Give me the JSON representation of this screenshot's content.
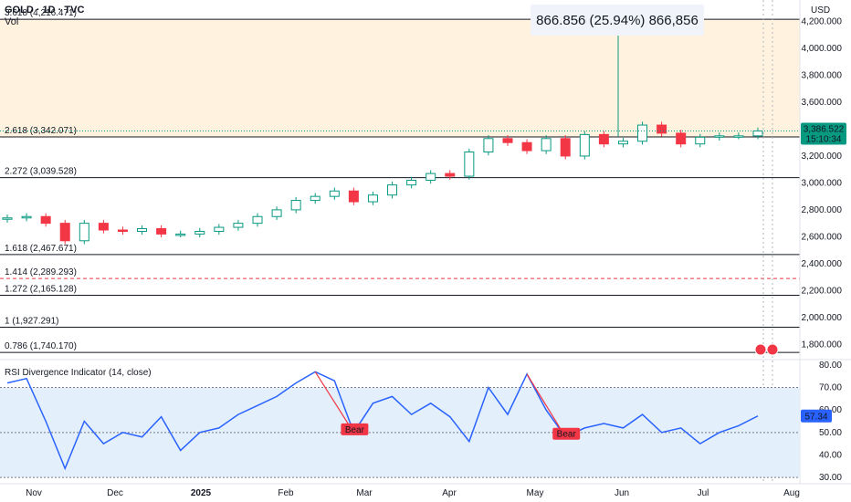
{
  "header": {
    "symbol_line": "GOLD · 1D · TVC",
    "vol_label": "Vol"
  },
  "currency": "USD",
  "measure_label": "866.856 (25.94%) 866,856",
  "price_tag": {
    "price": "3,386.522",
    "countdown": "15:10:34"
  },
  "rsi_tag": "57.34",
  "rsi_title": "RSI Divergence Indicator (14, close)",
  "bear_label": "Bear",
  "colors": {
    "up": "#089981",
    "down": "#f23645",
    "rsi": "#2962ff",
    "fib_fill": "#fff3e0",
    "rsi_fill": "#e3effb"
  },
  "fib_levels": [
    {
      "label": "3.618 (4,216.471)",
      "price": 4216.471
    },
    {
      "label": "2.618 (3,342.071)",
      "price": 3342.071
    },
    {
      "label": "2.272 (3,039.528)",
      "price": 3039.528
    },
    {
      "label": "1.618 (2,467.671)",
      "price": 2467.671
    },
    {
      "label": "1.414 (2,289.293)",
      "price": 2289.293
    },
    {
      "label": "1.272 (2,165.128)",
      "price": 2165.128
    },
    {
      "label": "1 (1,927.291)",
      "price": 1927.291
    },
    {
      "label": "0.786 (1,740.170)",
      "price": 1740.17
    }
  ],
  "price_axis_labels": [
    "4,200.000",
    "4,000.000",
    "3,800.000",
    "3,600.000",
    "3,200.000",
    "3,000.000",
    "2,800.000",
    "2,600.000",
    "2,400.000",
    "2,200.000",
    "2,000.000",
    "1,800.000"
  ],
  "rsi_axis_labels": [
    "80.00",
    "70.00",
    "60.00",
    "50.00",
    "40.00",
    "30.00"
  ],
  "time_labels": [
    "Nov",
    "Dec",
    "2025",
    "Feb",
    "Mar",
    "Apr",
    "May",
    "Jun",
    "Jul",
    "Aug"
  ],
  "chart_data": [
    {
      "type": "candlestick",
      "title": "GOLD · 1D · TVC",
      "y_axis": "price (USD)",
      "ylim": [
        1700,
        4360
      ],
      "x": [
        "Oct 20",
        "Oct 27",
        "Nov 3",
        "Nov 10",
        "Nov 17",
        "Nov 24",
        "Dec 1",
        "Dec 8",
        "Dec 15",
        "Dec 22",
        "Dec 29",
        "Jan 6",
        "Jan 13",
        "Jan 20",
        "Jan 27",
        "Feb 3",
        "Feb 10",
        "Feb 17",
        "Feb 24",
        "Mar 3",
        "Mar 10",
        "Mar 17",
        "Mar 24",
        "Mar 31",
        "Apr 7",
        "Apr 14",
        "Apr 21",
        "Apr 28",
        "May 5",
        "May 12",
        "May 19",
        "May 26",
        "Jun 2",
        "Jun 9",
        "Jun 16",
        "Jun 23",
        "Jun 30",
        "Jul 7",
        "Jul 14",
        "Jul 21"
      ],
      "close": [
        2740,
        2750,
        2700,
        2570,
        2700,
        2650,
        2640,
        2660,
        2620,
        2620,
        2640,
        2670,
        2700,
        2750,
        2800,
        2870,
        2900,
        2940,
        2860,
        2910,
        2985,
        3020,
        3070,
        3050,
        3230,
        3330,
        3300,
        3240,
        3330,
        3200,
        3360,
        3290,
        3310,
        3430,
        3370,
        3290,
        3340,
        3350,
        3350,
        3386.522
      ]
    },
    {
      "type": "line",
      "title": "RSI Divergence Indicator (14, close)",
      "ylim": [
        28,
        82
      ],
      "x": [
        "Oct 20",
        "Oct 27",
        "Nov 3",
        "Nov 10",
        "Nov 17",
        "Nov 24",
        "Dec 1",
        "Dec 8",
        "Dec 15",
        "Dec 22",
        "Dec 29",
        "Jan 6",
        "Jan 13",
        "Jan 20",
        "Jan 27",
        "Feb 3",
        "Feb 10",
        "Feb 17",
        "Feb 24",
        "Mar 3",
        "Mar 10",
        "Mar 17",
        "Mar 24",
        "Mar 31",
        "Apr 7",
        "Apr 14",
        "Apr 21",
        "Apr 28",
        "May 5",
        "May 12",
        "May 19",
        "May 26",
        "Jun 2",
        "Jun 9",
        "Jun 16",
        "Jun 23",
        "Jun 30",
        "Jul 7",
        "Jul 14",
        "Jul 21"
      ],
      "values": [
        72,
        74,
        55,
        34,
        55,
        45,
        50,
        48,
        57,
        42,
        50,
        52,
        58,
        62,
        66,
        72,
        77,
        73,
        50,
        63,
        66,
        58,
        63,
        57,
        46,
        70,
        58,
        76,
        60,
        48,
        52,
        54,
        52,
        58,
        50,
        52,
        45,
        50,
        53,
        57.34
      ],
      "reference_lines": [
        70,
        50,
        30
      ]
    }
  ]
}
